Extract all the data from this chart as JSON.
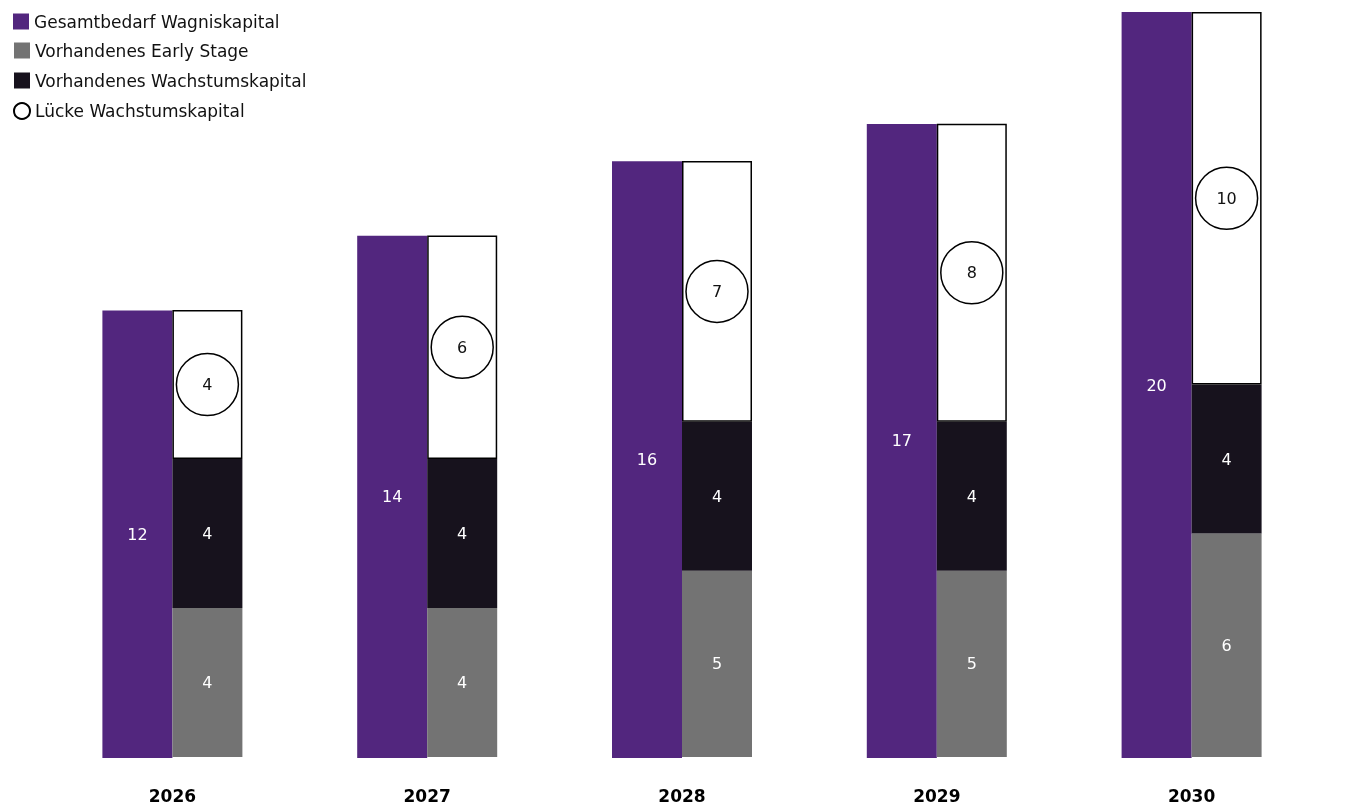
{
  "chart_data": [
    {
      "type": "bar",
      "categories": [
        "2026",
        "2027",
        "2028",
        "2029",
        "2030"
      ],
      "data_labels": true,
      "legend": "top left",
      "tick_labels": false,
      "series": [
        {
          "name": "Gesamtbedarf Wagniskapital",
          "color": "#52267e",
          "values": [
            12,
            14,
            16,
            17,
            20
          ]
        }
      ]
    },
    {
      "type": "bar",
      "categories": [
        "2026",
        "2027",
        "2028",
        "2029",
        "2030"
      ],
      "stacked": true,
      "data_labels": true,
      "legend": "top left",
      "series": [
        {
          "name": "Vorhandenes Early Stage",
          "color": "#737373",
          "values": [
            4,
            4,
            5,
            5,
            6
          ]
        },
        {
          "name": "Vorhandenes Wachstumskapital",
          "color": "#17121d",
          "values": [
            4,
            4,
            4,
            4,
            4
          ]
        },
        {
          "name": "Lücke Wachstumskapital",
          "color": "#ffffff",
          "values": [
            4,
            6,
            7,
            8,
            10
          ]
        }
      ]
    }
  ]
}
